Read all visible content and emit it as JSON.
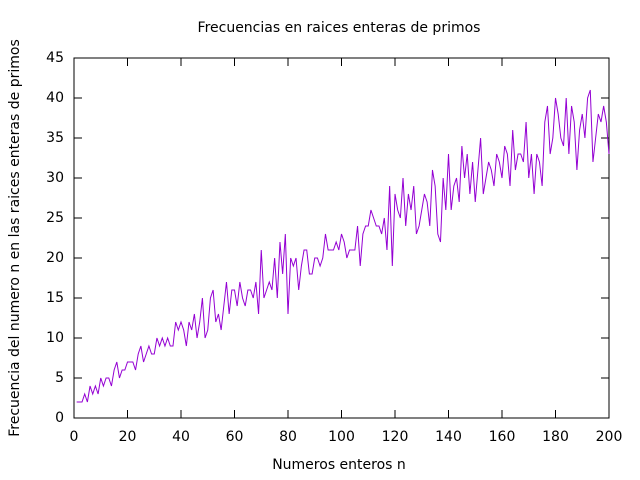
{
  "chart_data": {
    "type": "line",
    "title": "Frecuencias en raices enteras de primos",
    "x_label": "Numeros enteros n",
    "y_label": "Frecuencia del numero n en las raices enteras de primos",
    "x": [
      1,
      2,
      3,
      4,
      5,
      6,
      7,
      8,
      9,
      10,
      11,
      12,
      13,
      14,
      15,
      16,
      17,
      18,
      19,
      20,
      21,
      22,
      23,
      24,
      25,
      26,
      27,
      28,
      29,
      30,
      31,
      32,
      33,
      34,
      35,
      36,
      37,
      38,
      39,
      40,
      41,
      42,
      43,
      44,
      45,
      46,
      47,
      48,
      49,
      50,
      51,
      52,
      53,
      54,
      55,
      56,
      57,
      58,
      59,
      60,
      61,
      62,
      63,
      64,
      65,
      66,
      67,
      68,
      69,
      70,
      71,
      72,
      73,
      74,
      75,
      76,
      77,
      78,
      79,
      80,
      81,
      82,
      83,
      84,
      85,
      86,
      87,
      88,
      89,
      90,
      91,
      92,
      93,
      94,
      95,
      96,
      97,
      98,
      99,
      100,
      101,
      102,
      103,
      104,
      105,
      106,
      107,
      108,
      109,
      110,
      111,
      112,
      113,
      114,
      115,
      116,
      117,
      118,
      119,
      120,
      121,
      122,
      123,
      124,
      125,
      126,
      127,
      128,
      129,
      130,
      131,
      132,
      133,
      134,
      135,
      136,
      137,
      138,
      139,
      140,
      141,
      142,
      143,
      144,
      145,
      146,
      147,
      148,
      149,
      150,
      151,
      152,
      153,
      154,
      155,
      156,
      157,
      158,
      159,
      160,
      161,
      162,
      163,
      164,
      165,
      166,
      167,
      168,
      169,
      170,
      171,
      172,
      173,
      174,
      175,
      176,
      177,
      178,
      179,
      180,
      181,
      182,
      183,
      184,
      185,
      186,
      187,
      188,
      189,
      190,
      191,
      192,
      193,
      194,
      195,
      196,
      197,
      198,
      199,
      200
    ],
    "series": [
      {
        "color": "#9400d3",
        "values": [
          2,
          2,
          2,
          3,
          2,
          4,
          3,
          4,
          3,
          5,
          4,
          5,
          5,
          4,
          6,
          7,
          5,
          6,
          6,
          7,
          7,
          7,
          6,
          8,
          9,
          7,
          8,
          9,
          8,
          8,
          10,
          9,
          10,
          9,
          10,
          9,
          9,
          12,
          11,
          12,
          11,
          9,
          12,
          11,
          13,
          10,
          12,
          15,
          10,
          11,
          15,
          16,
          12,
          13,
          11,
          14,
          17,
          13,
          16,
          16,
          14,
          17,
          15,
          14,
          16,
          16,
          15,
          17,
          13,
          21,
          15,
          16,
          17,
          16,
          20,
          15,
          22,
          18,
          23,
          13,
          20,
          19,
          20,
          16,
          19,
          21,
          21,
          18,
          18,
          20,
          20,
          19,
          20,
          23,
          21,
          21,
          21,
          22,
          21,
          23,
          22,
          20,
          21,
          21,
          21,
          24,
          19,
          23,
          24,
          24,
          26,
          25,
          24,
          24,
          23,
          25,
          21,
          29,
          19,
          28,
          26,
          25,
          30,
          24,
          28,
          26,
          29,
          23,
          24,
          26,
          28,
          27,
          24,
          31,
          29,
          23,
          22,
          30,
          26,
          33,
          26,
          29,
          30,
          27,
          34,
          30,
          33,
          28,
          32,
          27,
          31,
          35,
          28,
          30,
          32,
          31,
          29,
          33,
          32,
          30,
          34,
          33,
          29,
          36,
          31,
          33,
          33,
          32,
          37,
          30,
          33,
          28,
          33,
          32,
          29,
          37,
          39,
          33,
          35,
          40,
          38,
          35,
          34,
          40,
          33,
          39,
          37,
          31,
          36,
          38,
          35,
          40,
          41,
          32,
          35,
          38,
          37,
          39,
          37,
          33
        ]
      }
    ],
    "xlim": [
      0,
      200
    ],
    "ylim": [
      0,
      45
    ],
    "xticks": [
      0,
      20,
      40,
      60,
      80,
      100,
      120,
      140,
      160,
      180,
      200
    ],
    "yticks": [
      0,
      5,
      10,
      15,
      20,
      25,
      30,
      35,
      40,
      45
    ]
  }
}
